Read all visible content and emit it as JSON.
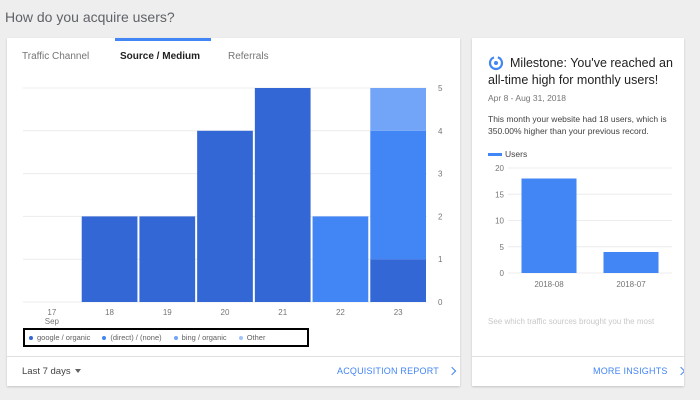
{
  "page": {
    "title": "How do you acquire users?"
  },
  "tabs": [
    {
      "label": "Traffic Channel",
      "active": false
    },
    {
      "label": "Source / Medium",
      "active": true
    },
    {
      "label": "Referrals",
      "active": false
    }
  ],
  "chart_data": {
    "type": "bar",
    "stacked": true,
    "categories": [
      "17",
      "18",
      "19",
      "20",
      "21",
      "22",
      "23"
    ],
    "x_sublabel": "Sep",
    "series": [
      {
        "name": "google / organic",
        "color": "#3367d6",
        "values": [
          0,
          2,
          2,
          4,
          5,
          0,
          1
        ]
      },
      {
        "name": "(direct) / (none)",
        "color": "#4285f4",
        "values": [
          0,
          0,
          0,
          0,
          0,
          2,
          3
        ]
      },
      {
        "name": "bing / organic",
        "color": "#72a4f7",
        "values": [
          0,
          0,
          0,
          0,
          0,
          0,
          1
        ]
      },
      {
        "name": "Other",
        "color": "#a1c2fa",
        "values": [
          0,
          0,
          0,
          0,
          0,
          0,
          0
        ]
      }
    ],
    "yticks": [
      0,
      1,
      2,
      3,
      4,
      5
    ],
    "ylim": [
      0,
      5
    ],
    "y_axis_side": "right",
    "grid": true
  },
  "footer": {
    "date_range": "Last 7 days",
    "link": "ACQUISITION REPORT"
  },
  "insight": {
    "icon": "milestone-icon",
    "title": "Milestone: You've reached an all-time high for monthly users!",
    "date": "Apr 8 - Aug 31, 2018",
    "body": "This month your website had 18 users, which is 350.00% higher than your previous record.",
    "legend": "Users",
    "chart_data": {
      "type": "bar",
      "categories": [
        "2018-08",
        "2018-07"
      ],
      "values": [
        18,
        4
      ],
      "yticks": [
        0,
        5,
        10,
        15,
        20
      ],
      "ylim": [
        0,
        20
      ],
      "color": "#4285f4",
      "grid": true
    },
    "faded_text": "See which traffic sources brought you the most",
    "link": "MORE INSIGHTS"
  }
}
